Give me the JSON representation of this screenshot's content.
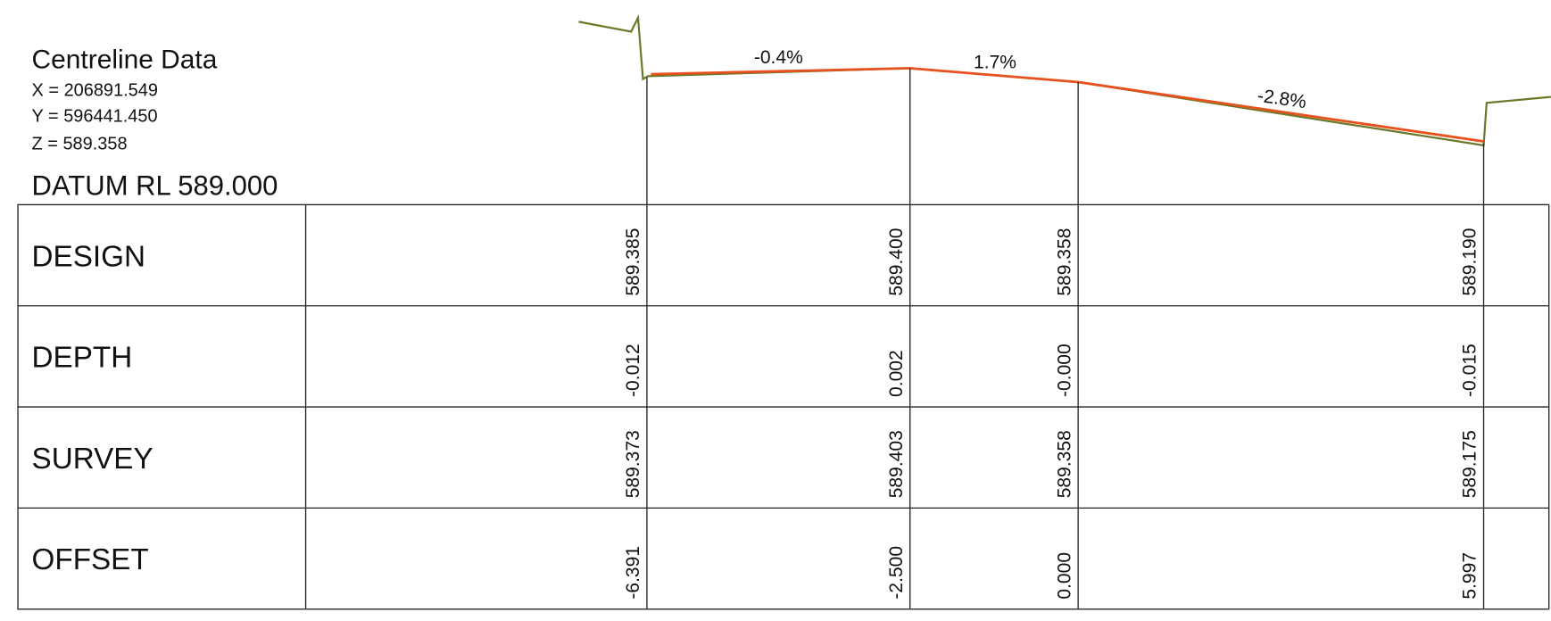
{
  "header": {
    "title": "Centreline Data",
    "x": "X = 206891.549",
    "y": "Y = 596441.450",
    "z": "Z = 589.358",
    "datum": "DATUM RL 589.000"
  },
  "grades": [
    "-0.4%",
    "1.7%",
    "-2.8%"
  ],
  "table": {
    "rows": [
      {
        "label": "DESIGN",
        "values": [
          "589.385",
          "589.400",
          "589.358",
          "589.190"
        ]
      },
      {
        "label": "DEPTH",
        "values": [
          "-0.012",
          "0.002",
          "-0.000",
          "-0.015"
        ]
      },
      {
        "label": "SURVEY",
        "values": [
          "589.373",
          "589.403",
          "589.358",
          "589.175"
        ]
      },
      {
        "label": "OFFSET",
        "values": [
          "-6.391",
          "-2.500",
          "0.000",
          "5.997"
        ]
      }
    ]
  }
}
